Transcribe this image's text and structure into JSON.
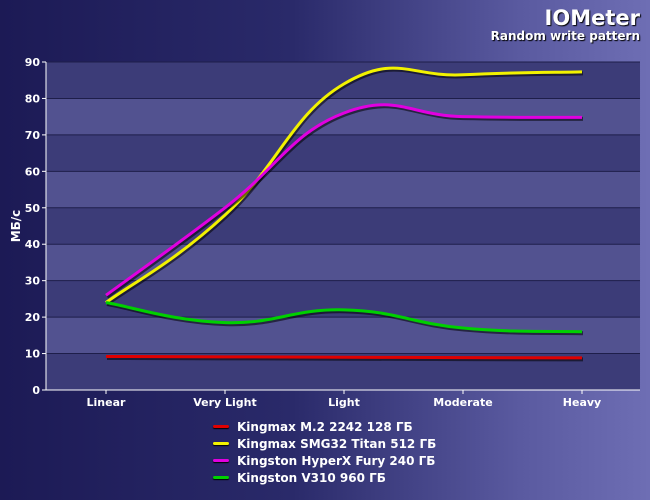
{
  "header": {
    "title": "IOMeter",
    "subtitle": "Random write pattern"
  },
  "chart_data": {
    "type": "line",
    "title": "IOMeter",
    "subtitle": "Random write pattern",
    "xlabel": "",
    "ylabel": "МБ/с",
    "categories": [
      "Linear",
      "Very Light",
      "Light",
      "Moderate",
      "Heavy"
    ],
    "ylim": [
      0,
      90
    ],
    "yticks": [
      0,
      10,
      20,
      30,
      40,
      50,
      60,
      70,
      80,
      90
    ],
    "grid": true,
    "legend": "bottom",
    "series": [
      {
        "name": "Kingmax M.2 2242 128 ГБ",
        "color": "#e00000",
        "values": [
          9.2,
          9.1,
          9.0,
          8.9,
          8.8
        ]
      },
      {
        "name": "Kingmax SMG32 Titan 512 ГБ",
        "color": "#f2f200",
        "values": [
          24,
          48,
          84,
          86.5,
          87.3
        ]
      },
      {
        "name": "Kingston HyperX Fury 240 ГБ",
        "color": "#e000e0",
        "values": [
          26,
          50,
          76,
          75,
          74.8
        ]
      },
      {
        "name": "Kingston V310 960 ГБ",
        "color": "#00d000",
        "values": [
          24,
          18.5,
          22,
          17,
          16
        ]
      }
    ]
  }
}
